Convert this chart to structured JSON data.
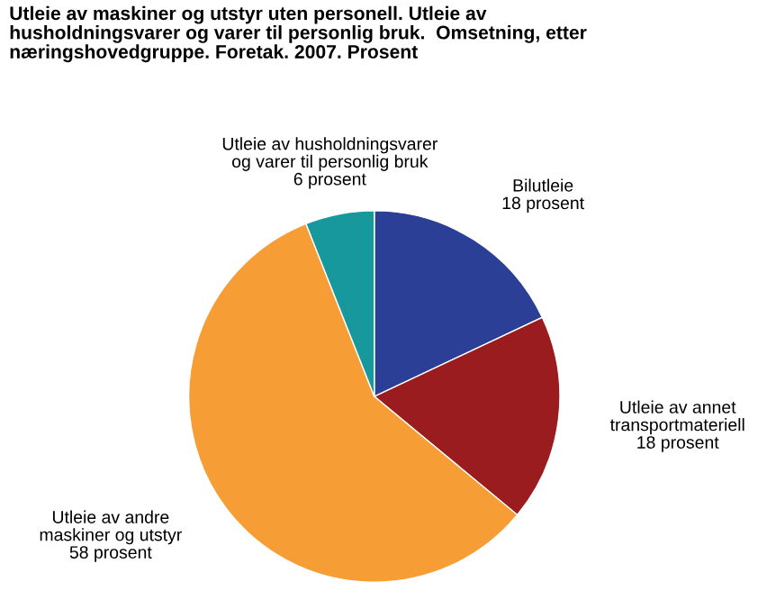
{
  "chart_data": {
    "type": "pie",
    "title": "Utleie av maskiner og utstyr uten personell. Utleie av\nhusholdningsvarer og varer til personlig bruk.  Omsetning, etter\nnæringshovedgruppe. Foretak. 2007. Prosent",
    "categories": [
      "Bilutleie",
      "Utleie av annet\ntransportmateriell",
      "Utleie av andre\nmaskiner og utstyr",
      "Utleie av husholdningsvarer\nog varer til personlig bruk"
    ],
    "values": [
      18,
      18,
      58,
      6
    ],
    "value_labels": [
      "18 prosent",
      "18 prosent",
      "58 prosent",
      "6 prosent"
    ],
    "colors": [
      "#2a3f95",
      "#9b1c1f",
      "#f79d36",
      "#17989c"
    ]
  }
}
